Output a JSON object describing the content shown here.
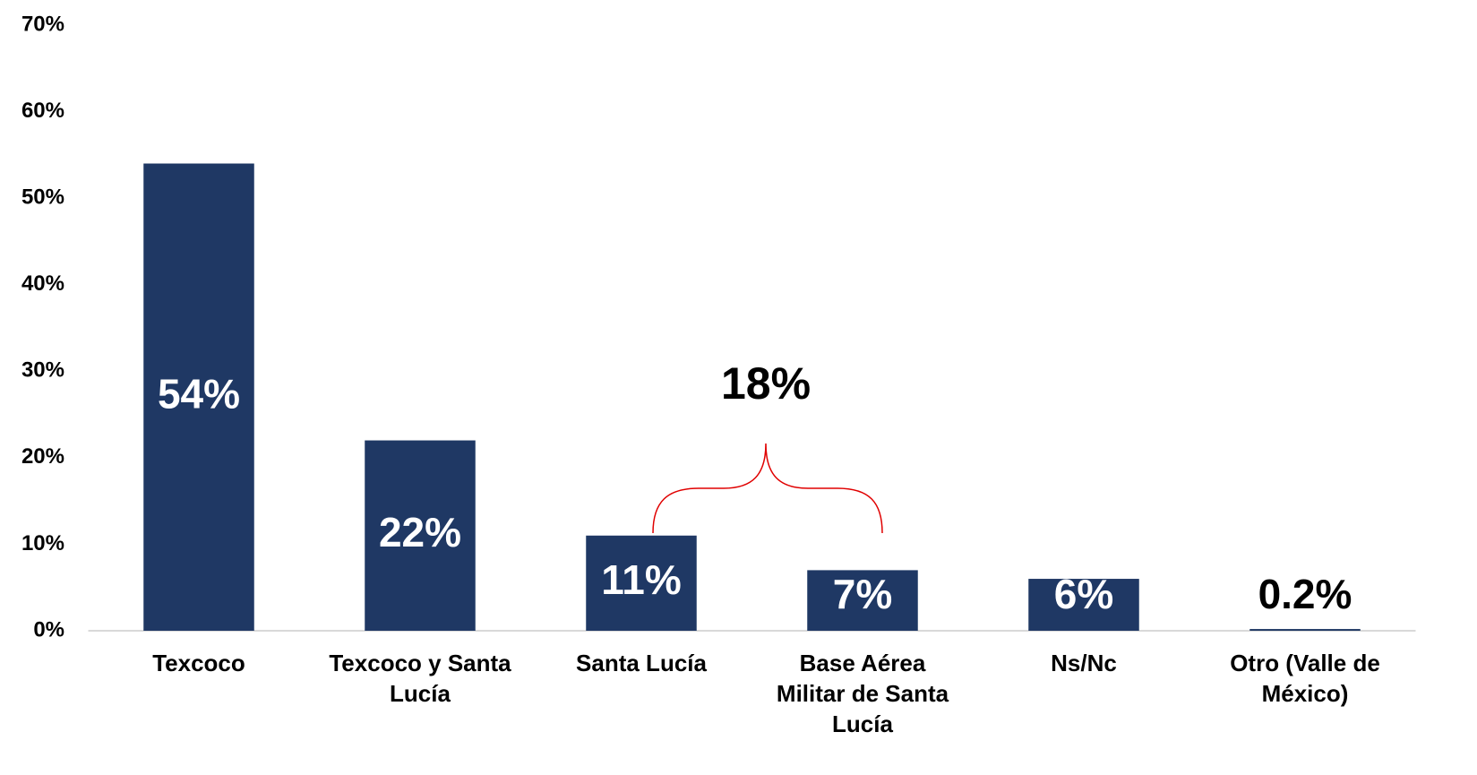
{
  "chart_data": {
    "type": "bar",
    "categories": [
      "Texcoco",
      "Texcoco y Santa Lucía",
      "Santa Lucía",
      "Base Aérea Militar de Santa Lucía",
      "Ns/Nc",
      "Otro (Valle de México)"
    ],
    "values": [
      54,
      22,
      11,
      7,
      6,
      0.2
    ],
    "value_labels": [
      "54%",
      "22%",
      "11%",
      "7%",
      "6%",
      "0.2%"
    ],
    "color": "#1f3864",
    "ylim": [
      0,
      70
    ],
    "yticks": [
      {
        "value": 0,
        "label": "0%"
      },
      {
        "value": 10,
        "label": "10%"
      },
      {
        "value": 20,
        "label": "20%"
      },
      {
        "value": 30,
        "label": "30%"
      },
      {
        "value": 40,
        "label": "40%"
      },
      {
        "value": 50,
        "label": "50%"
      },
      {
        "value": 60,
        "label": "60%"
      },
      {
        "value": 70,
        "label": "70%"
      }
    ],
    "annotations": [
      "18%"
    ]
  }
}
